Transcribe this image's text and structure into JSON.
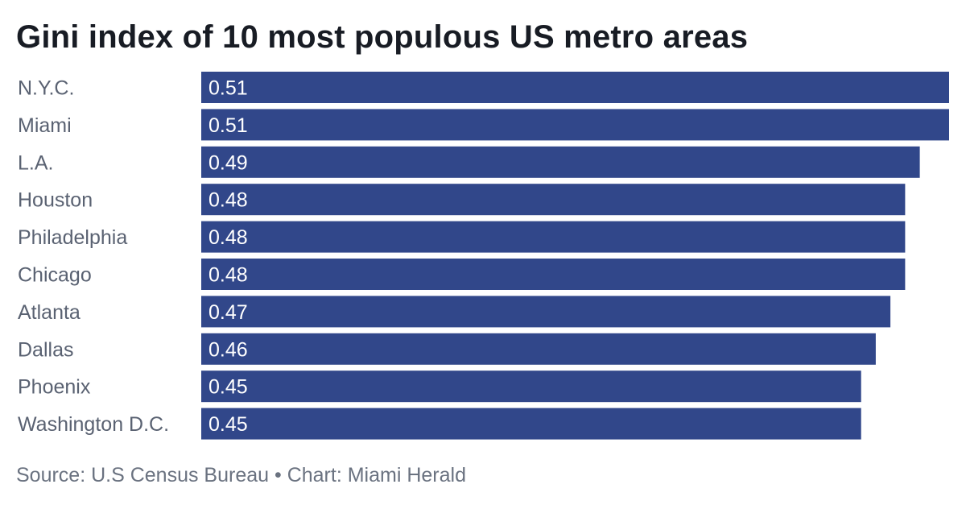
{
  "chart_data": {
    "type": "bar",
    "orientation": "horizontal",
    "title": "Gini index of 10 most populous US metro areas",
    "categories": [
      "N.Y.C.",
      "Miami",
      "L.A.",
      "Houston",
      "Philadelphia",
      "Chicago",
      "Atlanta",
      "Dallas",
      "Phoenix",
      "Washington D.C."
    ],
    "values": [
      0.51,
      0.51,
      0.49,
      0.48,
      0.48,
      0.48,
      0.47,
      0.46,
      0.45,
      0.45
    ],
    "value_labels": [
      "0.51",
      "0.51",
      "0.49",
      "0.48",
      "0.48",
      "0.48",
      "0.47",
      "0.46",
      "0.45",
      "0.45"
    ],
    "xlim": [
      0,
      0.51
    ],
    "grid": false,
    "legend": "none",
    "bar_color": "#31478a",
    "source": "Source: U.S Census Bureau • Chart: Miami Herald"
  }
}
